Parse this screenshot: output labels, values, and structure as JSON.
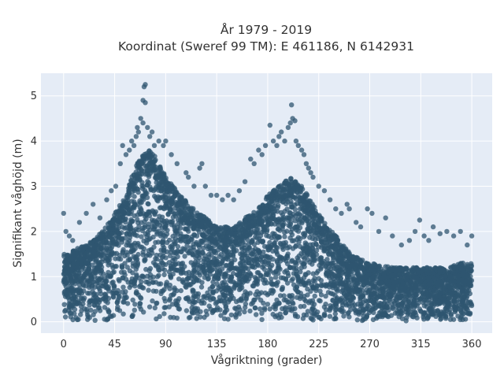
{
  "chart_data": {
    "type": "scatter",
    "title_lines": [
      "År 1979 - 2019",
      "Koordinat (Sweref 99 TM): E 461186, N 6142931"
    ],
    "xlabel": "Vågriktning (grader)",
    "ylabel": "Signifikant våghöjd (m)",
    "xlim": [
      -20,
      378
    ],
    "ylim": [
      -0.25,
      5.5
    ],
    "xticks": [
      0,
      45,
      90,
      135,
      180,
      225,
      270,
      315,
      360
    ],
    "yticks": [
      0,
      1,
      2,
      3,
      4,
      5
    ],
    "grid": true,
    "legend": "none",
    "marker_color": "#2f5570",
    "plot_bg": "#e5ecf6",
    "envelope": {
      "x": [
        0,
        10,
        20,
        30,
        40,
        50,
        55,
        60,
        65,
        70,
        75,
        80,
        85,
        90,
        100,
        110,
        120,
        130,
        140,
        150,
        160,
        170,
        180,
        185,
        190,
        195,
        200,
        205,
        210,
        215,
        220,
        225,
        230,
        240,
        250,
        260,
        270,
        280,
        290,
        300,
        310,
        320,
        330,
        340,
        350,
        360
      ],
      "y": [
        1.5,
        1.6,
        1.7,
        1.9,
        2.2,
        2.6,
        2.9,
        3.2,
        3.5,
        3.7,
        3.8,
        3.7,
        3.5,
        3.2,
        2.9,
        2.6,
        2.4,
        2.2,
        2.1,
        2.1,
        2.3,
        2.5,
        2.8,
        2.9,
        3.0,
        3.1,
        3.2,
        3.1,
        3.0,
        2.8,
        2.6,
        2.4,
        2.2,
        1.9,
        1.6,
        1.4,
        1.3,
        1.25,
        1.2,
        1.2,
        1.2,
        1.2,
        1.2,
        1.2,
        1.3,
        1.3
      ]
    },
    "outliers": [
      [
        0,
        2.4
      ],
      [
        2,
        2.0
      ],
      [
        5,
        1.9
      ],
      [
        8,
        1.8
      ],
      [
        14,
        2.2
      ],
      [
        20,
        2.4
      ],
      [
        26,
        2.6
      ],
      [
        32,
        2.3
      ],
      [
        38,
        2.7
      ],
      [
        42,
        2.9
      ],
      [
        46,
        3.0
      ],
      [
        50,
        3.5
      ],
      [
        52,
        3.9
      ],
      [
        55,
        3.7
      ],
      [
        58,
        3.8
      ],
      [
        60,
        4.0
      ],
      [
        62,
        3.9
      ],
      [
        64,
        4.1
      ],
      [
        65,
        4.3
      ],
      [
        66,
        4.2
      ],
      [
        68,
        4.5
      ],
      [
        70,
        4.4
      ],
      [
        70,
        4.9
      ],
      [
        72,
        4.85
      ],
      [
        71,
        5.2
      ],
      [
        72,
        5.25
      ],
      [
        74,
        4.3
      ],
      [
        76,
        4.1
      ],
      [
        78,
        4.2
      ],
      [
        80,
        3.9
      ],
      [
        84,
        4.0
      ],
      [
        88,
        3.9
      ],
      [
        90,
        4.0
      ],
      [
        95,
        3.7
      ],
      [
        100,
        3.5
      ],
      [
        108,
        3.3
      ],
      [
        110,
        3.2
      ],
      [
        115,
        3.0
      ],
      [
        120,
        3.4
      ],
      [
        122,
        3.5
      ],
      [
        125,
        3.0
      ],
      [
        130,
        2.8
      ],
      [
        135,
        2.8
      ],
      [
        140,
        2.7
      ],
      [
        145,
        2.8
      ],
      [
        150,
        2.7
      ],
      [
        155,
        2.9
      ],
      [
        160,
        3.1
      ],
      [
        165,
        3.6
      ],
      [
        168,
        3.5
      ],
      [
        172,
        3.8
      ],
      [
        175,
        3.7
      ],
      [
        178,
        3.9
      ],
      [
        182,
        4.35
      ],
      [
        185,
        4.0
      ],
      [
        188,
        3.9
      ],
      [
        190,
        4.1
      ],
      [
        192,
        4.2
      ],
      [
        195,
        4.0
      ],
      [
        198,
        4.3
      ],
      [
        200,
        4.4
      ],
      [
        202,
        4.5
      ],
      [
        204,
        4.45
      ],
      [
        205,
        4.0
      ],
      [
        207,
        3.9
      ],
      [
        210,
        3.8
      ],
      [
        212,
        3.7
      ],
      [
        214,
        3.5
      ],
      [
        216,
        3.4
      ],
      [
        218,
        3.3
      ],
      [
        220,
        3.2
      ],
      [
        225,
        3.0
      ],
      [
        230,
        2.9
      ],
      [
        235,
        2.7
      ],
      [
        240,
        2.5
      ],
      [
        245,
        2.4
      ],
      [
        250,
        2.6
      ],
      [
        252,
        2.5
      ],
      [
        258,
        2.2
      ],
      [
        262,
        2.1
      ],
      [
        268,
        2.5
      ],
      [
        272,
        2.4
      ],
      [
        278,
        2.0
      ],
      [
        284,
        2.3
      ],
      [
        290,
        1.9
      ],
      [
        298,
        1.7
      ],
      [
        305,
        1.8
      ],
      [
        310,
        2.0
      ],
      [
        314,
        2.25
      ],
      [
        318,
        1.9
      ],
      [
        322,
        1.8
      ],
      [
        326,
        2.1
      ],
      [
        332,
        1.95
      ],
      [
        338,
        2.0
      ],
      [
        344,
        1.9
      ],
      [
        350,
        2.0
      ],
      [
        356,
        1.7
      ],
      [
        360,
        1.9
      ],
      [
        201,
        4.8
      ]
    ]
  }
}
